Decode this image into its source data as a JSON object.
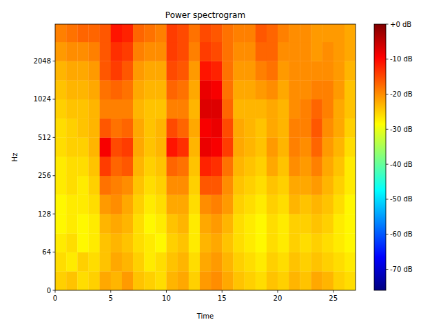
{
  "chart_data": {
    "type": "heatmap",
    "title": "Power spectrogram",
    "x_label": "Time",
    "y_label": "Hz",
    "log": "y",
    "color": "jet",
    "xlim": [
      0,
      27
    ],
    "ylim": [
      0,
      4000
    ],
    "xticks": [
      0,
      5,
      10,
      15,
      20,
      25
    ],
    "yticks": [
      0,
      64,
      128,
      256,
      512,
      1024,
      2048
    ],
    "x_edges": [
      0,
      1,
      2,
      3,
      4,
      5,
      6,
      7,
      8,
      9,
      10,
      11,
      12,
      13,
      14,
      15,
      16,
      17,
      18,
      19,
      20,
      21,
      22,
      23,
      24,
      25,
      26,
      27
    ],
    "y_edges": [
      0,
      32,
      64,
      90,
      128,
      181,
      256,
      362,
      512,
      724,
      1024,
      1448,
      2048,
      2896,
      4000
    ],
    "cells": [
      [
        -25,
        -24,
        -26,
        -25,
        -22,
        -23,
        -21,
        -24,
        -25,
        -26,
        -23,
        -22,
        -25,
        -21,
        -20,
        -22,
        -24,
        -25,
        -26,
        -24,
        -25,
        -23,
        -24,
        -22,
        -23,
        -25,
        -26
      ],
      [
        -26,
        -27,
        -25,
        -26,
        -24,
        -22,
        -23,
        -25,
        -27,
        -26,
        -24,
        -23,
        -26,
        -22,
        -21,
        -23,
        -25,
        -26,
        -27,
        -25,
        -26,
        -24,
        -25,
        -24,
        -25,
        -26,
        -27
      ],
      [
        -27,
        -26,
        -28,
        -27,
        -24,
        -23,
        -24,
        -26,
        -27,
        -28,
        -25,
        -24,
        -27,
        -23,
        -22,
        -24,
        -26,
        -27,
        -28,
        -26,
        -27,
        -25,
        -26,
        -25,
        -26,
        -27,
        -28
      ],
      [
        -28,
        -27,
        -28,
        -27,
        -23,
        -22,
        -23,
        -26,
        -28,
        -27,
        -24,
        -23,
        -27,
        -22,
        -21,
        -23,
        -26,
        -27,
        -28,
        -26,
        -27,
        -25,
        -25,
        -24,
        -25,
        -27,
        -28
      ],
      [
        -28,
        -27,
        -27,
        -26,
        -21,
        -20,
        -22,
        -25,
        -27,
        -26,
        -22,
        -22,
        -26,
        -20,
        -19,
        -21,
        -25,
        -26,
        -27,
        -25,
        -26,
        -23,
        -24,
        -23,
        -24,
        -26,
        -28
      ],
      [
        -27,
        -26,
        -27,
        -25,
        -18,
        -19,
        -20,
        -24,
        -26,
        -25,
        -20,
        -20,
        -25,
        -16,
        -16,
        -20,
        -24,
        -25,
        -26,
        -24,
        -25,
        -22,
        -22,
        -21,
        -23,
        -25,
        -27
      ],
      [
        -27,
        -26,
        -26,
        -24,
        -14,
        -17,
        -16,
        -23,
        -25,
        -24,
        -17,
        -18,
        -24,
        -12,
        -13,
        -18,
        -23,
        -24,
        -25,
        -22,
        -24,
        -20,
        -21,
        -19,
        -22,
        -24,
        -27
      ],
      [
        -26,
        -25,
        -25,
        -23,
        -9,
        -15,
        -14,
        -22,
        -24,
        -23,
        -11,
        -13,
        -23,
        -8,
        -9,
        -14,
        -22,
        -23,
        -24,
        -21,
        -23,
        -19,
        -20,
        -17,
        -21,
        -23,
        -26
      ],
      [
        -26,
        -25,
        -24,
        -23,
        -16,
        -18,
        -17,
        -22,
        -24,
        -23,
        -15,
        -17,
        -22,
        -9,
        -8,
        -15,
        -22,
        -23,
        -24,
        -22,
        -23,
        -19,
        -19,
        -16,
        -20,
        -22,
        -25
      ],
      [
        -25,
        -24,
        -24,
        -23,
        -19,
        -19,
        -19,
        -23,
        -24,
        -24,
        -19,
        -19,
        -23,
        -7,
        -7,
        -17,
        -23,
        -23,
        -23,
        -22,
        -23,
        -20,
        -19,
        -17,
        -19,
        -22,
        -24
      ],
      [
        -24,
        -23,
        -23,
        -22,
        -18,
        -17,
        -18,
        -22,
        -23,
        -23,
        -17,
        -18,
        -22,
        -8,
        -9,
        -18,
        -22,
        -22,
        -21,
        -20,
        -22,
        -20,
        -20,
        -19,
        -19,
        -21,
        -24
      ],
      [
        -23,
        -22,
        -22,
        -21,
        -16,
        -14,
        -16,
        -21,
        -22,
        -22,
        -15,
        -16,
        -21,
        -11,
        -12,
        -18,
        -21,
        -21,
        -19,
        -18,
        -21,
        -20,
        -20,
        -20,
        -20,
        -21,
        -23
      ],
      [
        -21,
        -20,
        -20,
        -19,
        -16,
        -13,
        -14,
        -19,
        -20,
        -20,
        -14,
        -15,
        -19,
        -14,
        -15,
        -18,
        -20,
        -20,
        -17,
        -17,
        -20,
        -20,
        -20,
        -21,
        -20,
        -21,
        -22
      ],
      [
        -19,
        -18,
        -17,
        -17,
        -16,
        -11,
        -12,
        -17,
        -18,
        -19,
        -14,
        -15,
        -18,
        -15,
        -16,
        -18,
        -19,
        -19,
        -16,
        -17,
        -19,
        -20,
        -20,
        -21,
        -21,
        -21,
        -22
      ]
    ],
    "colorbar": {
      "range": [
        -76,
        0
      ],
      "ticks": [
        {
          "value": 0,
          "label": "+0 dB"
        },
        {
          "value": -10,
          "label": "-10 dB"
        },
        {
          "value": -20,
          "label": "-20 dB"
        },
        {
          "value": -30,
          "label": "-30 dB"
        },
        {
          "value": -40,
          "label": "-40 dB"
        },
        {
          "value": -50,
          "label": "-50 dB"
        },
        {
          "value": -60,
          "label": "-60 dB"
        },
        {
          "value": -70,
          "label": "-70 dB"
        }
      ]
    }
  }
}
